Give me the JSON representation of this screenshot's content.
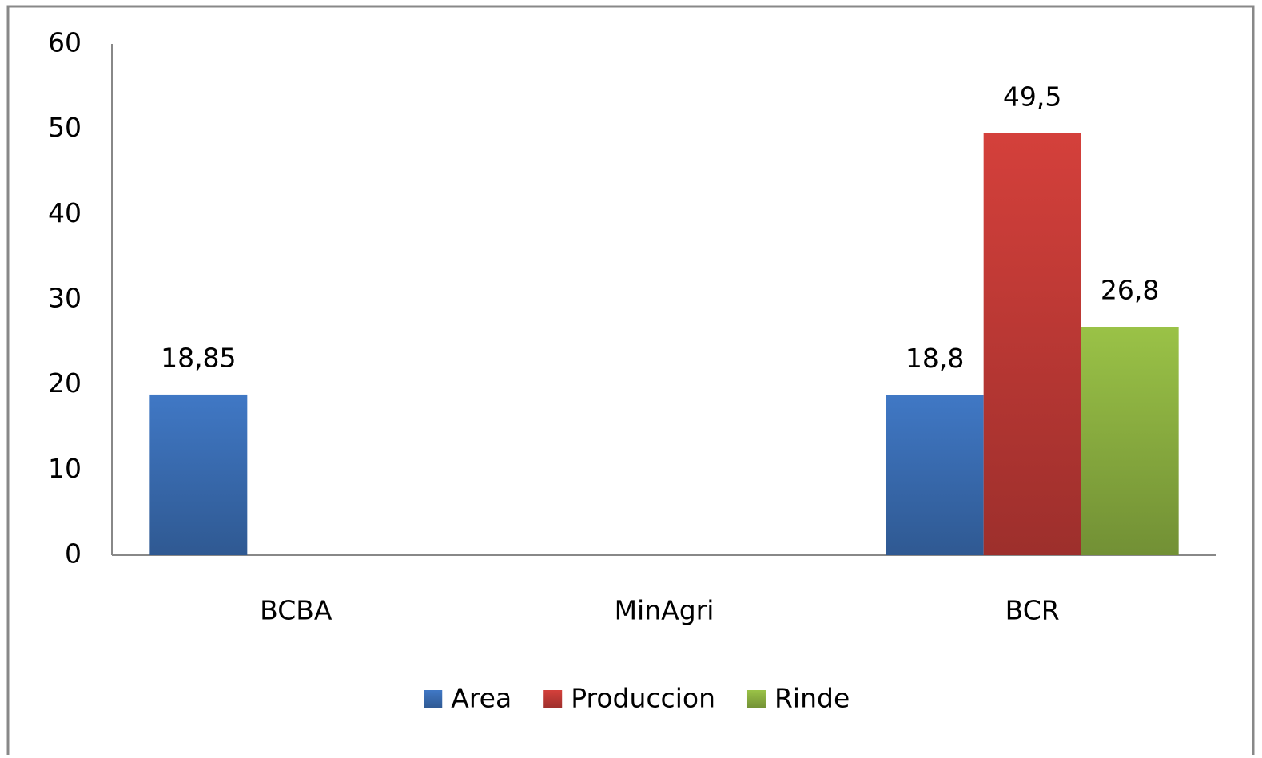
{
  "chart_data": {
    "type": "bar",
    "categories": [
      "BCBA",
      "MinAgri",
      "BCR"
    ],
    "series": [
      {
        "name": "Area",
        "color": "#3b6fb6",
        "values": [
          18.85,
          null,
          18.8
        ],
        "value_labels": [
          "18,85",
          null,
          "18,8"
        ]
      },
      {
        "name": "Produccion",
        "color": "#c43b37",
        "values": [
          null,
          null,
          49.5
        ],
        "value_labels": [
          null,
          null,
          "49,5"
        ]
      },
      {
        "name": "Rinde",
        "color": "#8fb442",
        "values": [
          null,
          null,
          26.8
        ],
        "value_labels": [
          null,
          null,
          "26,8"
        ]
      }
    ],
    "ylim": [
      0,
      60
    ],
    "yticks": [
      0,
      10,
      20,
      30,
      40,
      50,
      60
    ],
    "grid": false,
    "legend": "bottom"
  }
}
